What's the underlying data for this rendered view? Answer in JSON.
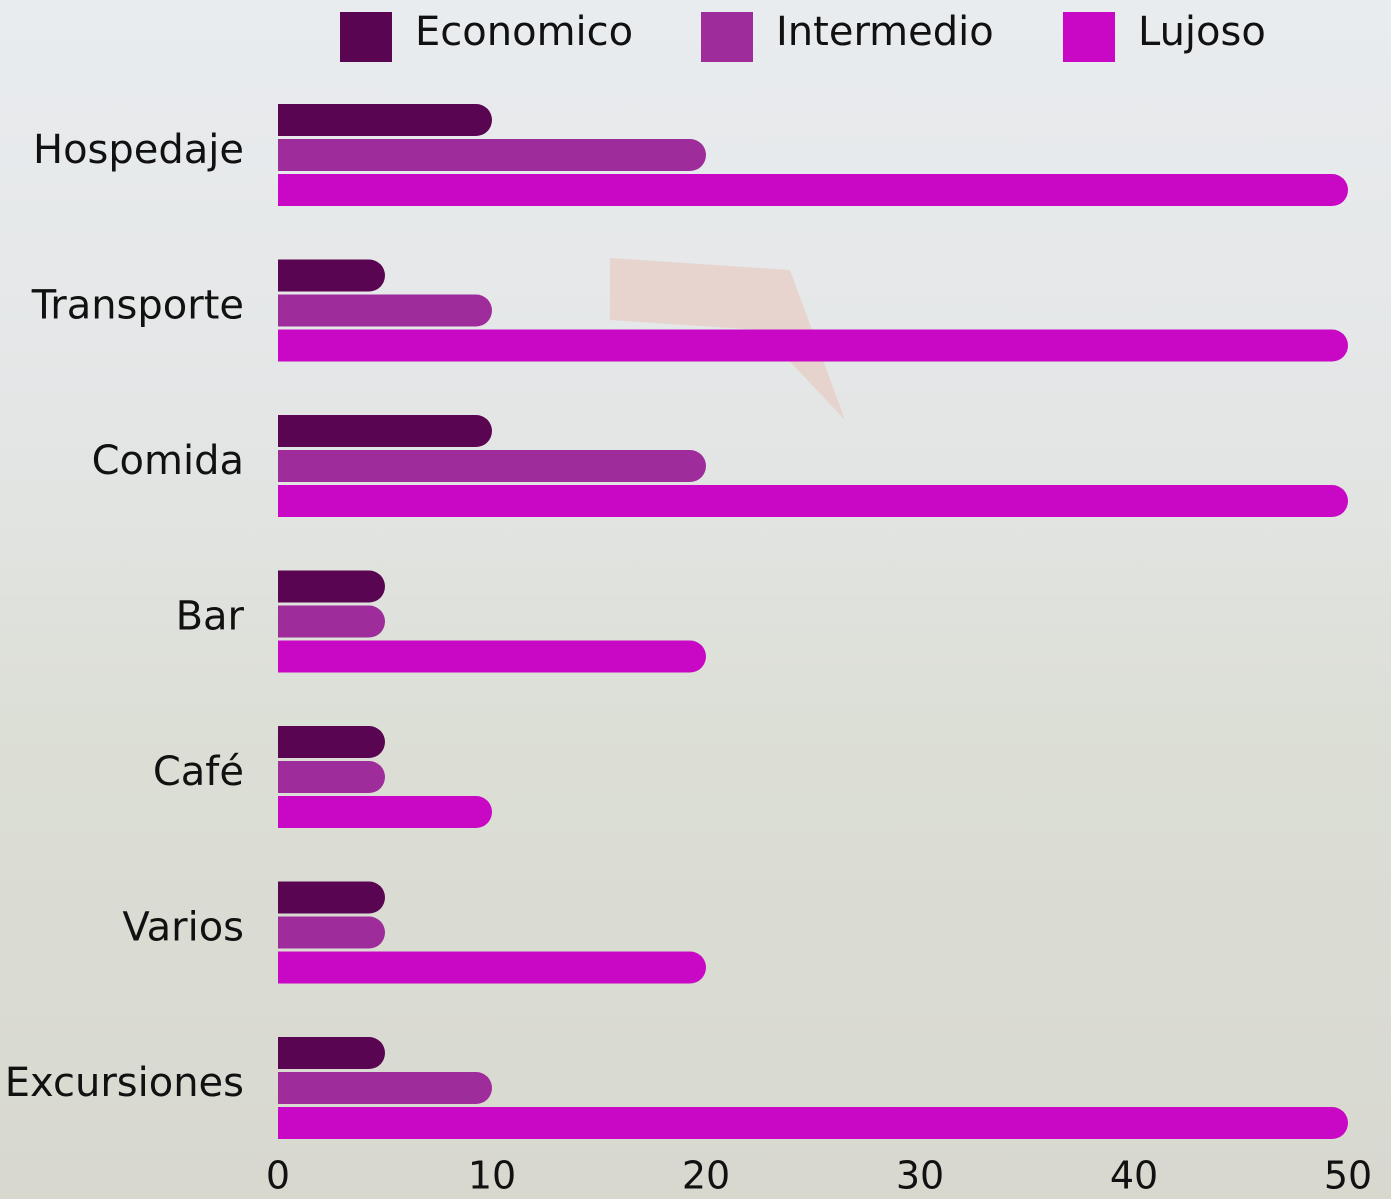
{
  "chart_data": {
    "type": "bar",
    "orientation": "horizontal",
    "categories": [
      "Hospedaje",
      "Transporte",
      "Comida",
      "Bar",
      "Café",
      "Varios",
      "Excursiones"
    ],
    "series": [
      {
        "name": "Economico",
        "color": "#5a0552",
        "values": [
          10,
          5,
          10,
          5,
          5,
          5,
          5
        ]
      },
      {
        "name": "Intermedio",
        "color": "#9e2d9b",
        "values": [
          20,
          10,
          20,
          5,
          5,
          5,
          10
        ]
      },
      {
        "name": "Lujoso",
        "color": "#c808c4",
        "values": [
          50,
          50,
          50,
          20,
          10,
          20,
          50
        ]
      }
    ],
    "xlim": [
      0,
      50
    ],
    "xticks": [
      0,
      10,
      20,
      30,
      40,
      50
    ],
    "grid": false,
    "legend": "top"
  }
}
